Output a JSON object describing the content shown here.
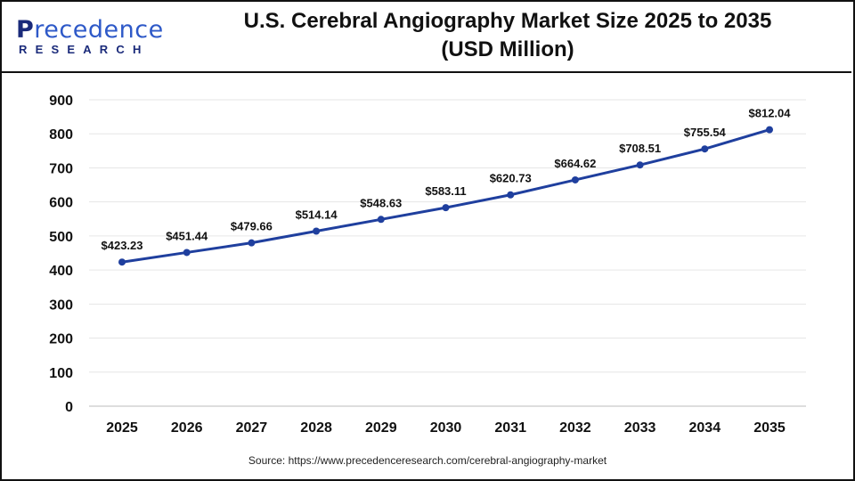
{
  "logo": {
    "first_letter": "P",
    "rest": "recedence",
    "subline": "RESEARCH"
  },
  "title_line1": "U.S. Cerebral Angiography Market Size 2025 to 2035",
  "title_line2": "(USD Million)",
  "source": "Source: https://www.precedenceresearch.com/cerebral-angiography-market",
  "colors": {
    "line": "#1f3f9e",
    "grid": "#e6e6e6",
    "text": "#111111"
  },
  "chart_data": {
    "type": "line",
    "title": "U.S. Cerebral Angiography Market Size 2025 to 2035 (USD Million)",
    "x": [
      "2025",
      "2026",
      "2027",
      "2028",
      "2029",
      "2030",
      "2031",
      "2032",
      "2033",
      "2034",
      "2035"
    ],
    "values": [
      423.23,
      451.44,
      479.66,
      514.14,
      548.63,
      583.11,
      620.73,
      664.62,
      708.51,
      755.54,
      812.04
    ],
    "data_labels": [
      "$423.23",
      "$451.44",
      "$479.66",
      "$514.14",
      "$548.63",
      "$583.11",
      "$620.73",
      "$664.62",
      "$708.51",
      "$755.54",
      "$812.04"
    ],
    "ylim": [
      0,
      900
    ],
    "yticks": [
      0,
      100,
      200,
      300,
      400,
      500,
      600,
      700,
      800,
      900
    ],
    "grid": true,
    "legend": "none"
  }
}
